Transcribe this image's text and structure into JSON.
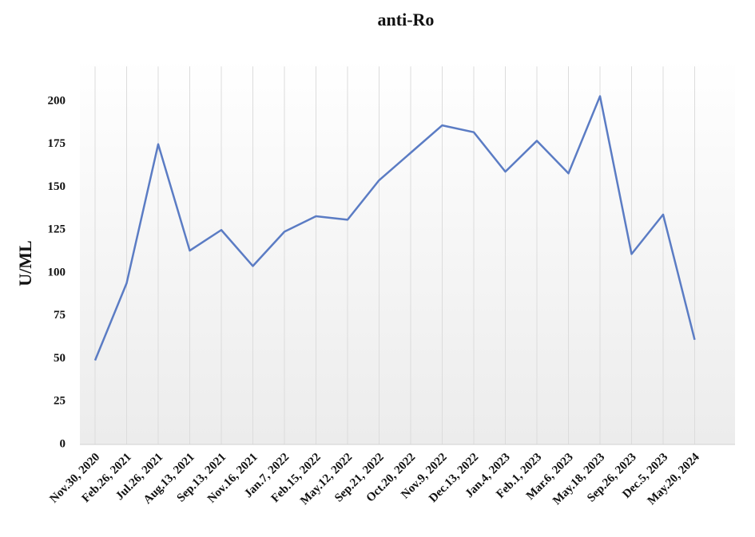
{
  "chart_data": {
    "type": "line",
    "title": "anti-Ro",
    "y_label": "U/ML",
    "categories": [
      "Nov.30, 2020",
      "Feb.26, 2021",
      "Jul.26, 2021",
      "Aug.13, 2021",
      "Sep.13, 2021",
      "Nov.16, 2021",
      "Jan.7, 2022",
      "Feb.15, 2022",
      "May.12, 2022",
      "Sep.21, 2022",
      "Oct.20, 2022",
      "Nov.9, 2022",
      "Dec.13, 2022",
      "Jan.4, 2023",
      "Feb.1, 2023",
      "Mar.6, 2023",
      "May.18, 2023",
      "Sep.26, 2023",
      "Dec.5, 2023",
      "May.20, 2024"
    ],
    "values": [
      49,
      94,
      175,
      113,
      125,
      104,
      124,
      133,
      131,
      154,
      170,
      186,
      182,
      159,
      177,
      158,
      203,
      111,
      134,
      61
    ],
    "color": "#5b7cc4",
    "ylim": [
      0,
      225
    ],
    "yticks": [
      0,
      25,
      50,
      75,
      100,
      125,
      150,
      175,
      200
    ],
    "grid": true
  }
}
